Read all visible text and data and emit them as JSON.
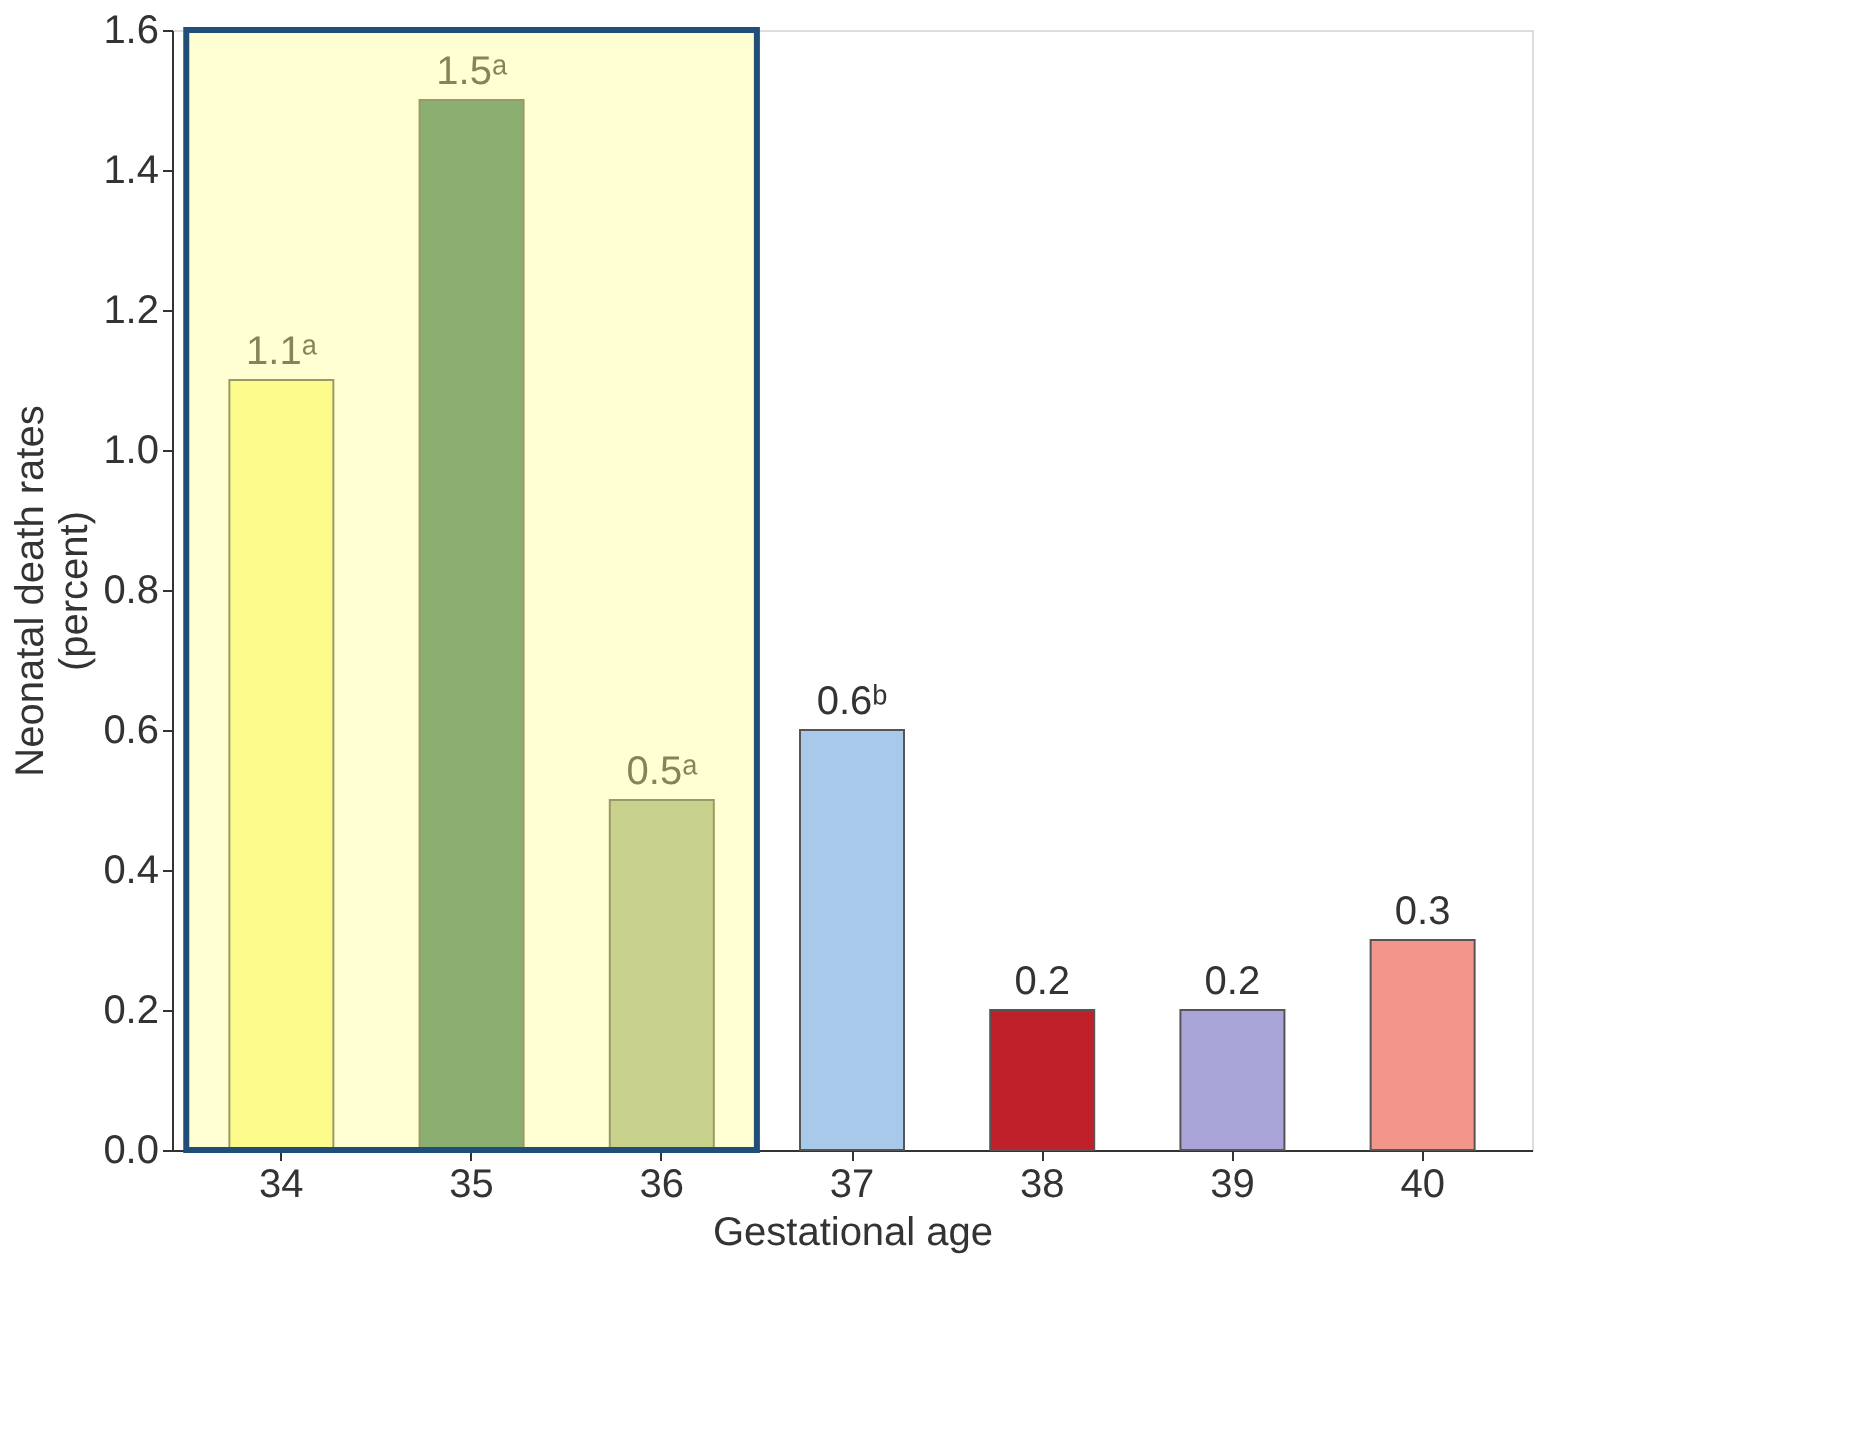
{
  "chart_data": {
    "type": "bar",
    "xlabel": "Gestational age",
    "ylabel": "Neonatal death rates\n(percent)",
    "categories": [
      "34",
      "35",
      "36",
      "37",
      "38",
      "39",
      "40"
    ],
    "values": [
      1.1,
      1.5,
      0.5,
      0.6,
      0.2,
      0.2,
      0.3
    ],
    "colors": [
      "#fbf98a",
      "#3e7a5e",
      "#a3b58c",
      "#a8c9ea",
      "#c0202a",
      "#aaa5d8",
      "#f2968c"
    ],
    "value_labels": [
      "1.1ᵃ",
      "1.5ᵃ",
      "0.5ᵃ",
      "0.6ᵇ",
      "0.2",
      "0.2",
      "0.3"
    ],
    "ylim": [
      0,
      1.6
    ],
    "yticks": [
      {
        "value": 0,
        "label": "0.0"
      },
      0.2,
      0.4,
      0.6,
      0.8,
      {
        "value": 1,
        "label": "1.0"
      },
      1.2,
      1.4,
      1.6
    ],
    "grid": false,
    "bands": [
      {
        "axis": "x",
        "from": "34",
        "to": "36",
        "color": "#ffff8c"
      }
    ]
  }
}
